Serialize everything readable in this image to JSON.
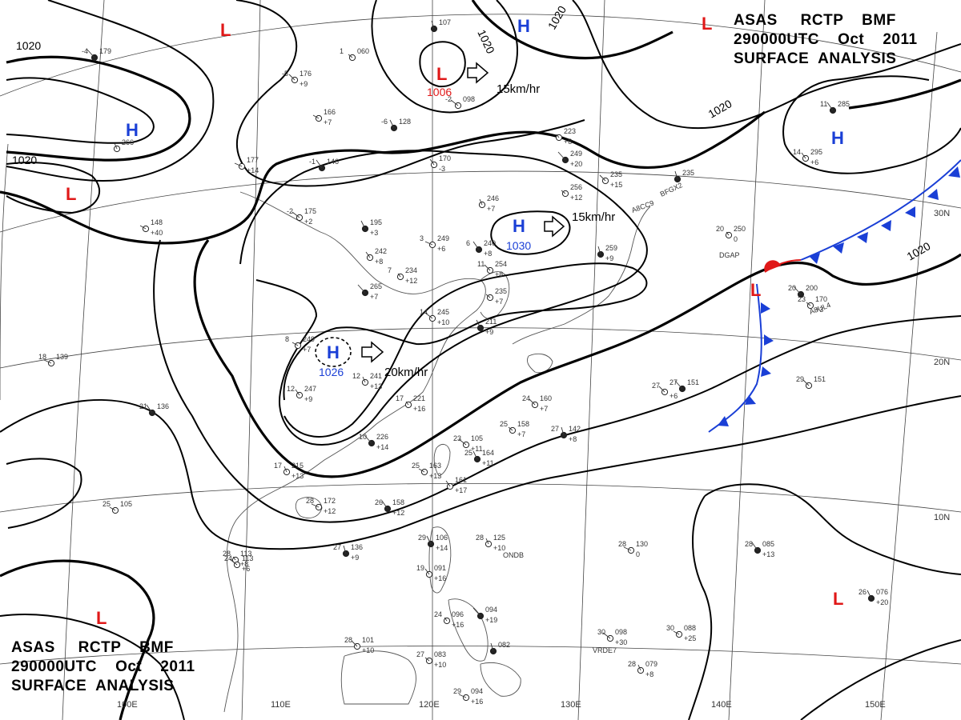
{
  "header": {
    "line1": "ASAS     RCTP    BMF",
    "line2": "290000UTC    Oct    2011",
    "line3": "SURFACE  ANALYSIS"
  },
  "footer": {
    "line1": "ASAS     RCTP    BMF",
    "line2": "290000UTC    Oct    2011",
    "line3": "SURFACE  ANALYSIS"
  },
  "longitude_labels": [
    "100E",
    "110E",
    "120E",
    "130E",
    "140E",
    "150E"
  ],
  "latitude_labels": [
    "30N",
    "20N",
    "10N"
  ],
  "isobar_label": "1020",
  "systems": [
    {
      "id": "high-west-china",
      "type": "H",
      "pressure": ""
    },
    {
      "id": "high-central-china",
      "type": "H",
      "pressure": "1026",
      "motion": "20km/hr"
    },
    {
      "id": "high-east-china-sea",
      "type": "H",
      "pressure": "1030",
      "motion": "15km/hr"
    },
    {
      "id": "high-north",
      "type": "H",
      "pressure": ""
    },
    {
      "id": "high-northeast",
      "type": "H",
      "pressure": ""
    },
    {
      "id": "low-north",
      "type": "L",
      "pressure": "1006",
      "motion": "15km/hr"
    },
    {
      "id": "low-northwest",
      "type": "L",
      "pressure": ""
    },
    {
      "id": "low-west",
      "type": "L",
      "pressure": ""
    },
    {
      "id": "low-northeast-corner",
      "type": "L",
      "pressure": ""
    },
    {
      "id": "low-front",
      "type": "L",
      "pressure": ""
    },
    {
      "id": "low-southwest",
      "type": "L",
      "pressure": ""
    },
    {
      "id": "low-southeast",
      "type": "L",
      "pressure": ""
    }
  ],
  "stations": [
    {
      "t": "-4",
      "p": "179",
      "d": ""
    },
    {
      "t": "-5",
      "p": "176",
      "d": "+9"
    },
    {
      "t": "1",
      "p": "060",
      "d": ""
    },
    {
      "t": "",
      "p": "107",
      "d": ""
    },
    {
      "t": "-2",
      "p": "098",
      "d": ""
    },
    {
      "t": "",
      "p": "166",
      "d": "+7"
    },
    {
      "t": "-6",
      "p": "128",
      "d": ""
    },
    {
      "t": "",
      "p": "266",
      "d": ""
    },
    {
      "t": "",
      "p": "177",
      "d": "+14"
    },
    {
      "t": "-1",
      "p": "146",
      "d": ""
    },
    {
      "t": "",
      "p": "170",
      "d": "-3"
    },
    {
      "t": "",
      "p": "223",
      "d": "+8"
    },
    {
      "t": "",
      "p": "249",
      "d": "+20"
    },
    {
      "t": "",
      "p": "235",
      "d": "+15"
    },
    {
      "t": "",
      "p": "256",
      "d": "+12"
    },
    {
      "t": "",
      "p": "235",
      "d": ""
    },
    {
      "t": "-2",
      "p": "175",
      "d": "+2"
    },
    {
      "t": "",
      "p": "148",
      "d": "+40"
    },
    {
      "t": "",
      "p": "195",
      "d": "+3"
    },
    {
      "t": "",
      "p": "246",
      "d": "+7"
    },
    {
      "t": "3",
      "p": "249",
      "d": "+6"
    },
    {
      "t": "6",
      "p": "240",
      "d": "+8"
    },
    {
      "t": "",
      "p": "242",
      "d": "+8"
    },
    {
      "t": "7",
      "p": "234",
      "d": "+12"
    },
    {
      "t": "",
      "p": "265",
      "d": "+7"
    },
    {
      "t": "11",
      "p": "254",
      "d": "+8"
    },
    {
      "t": "",
      "p": "235",
      "d": "+7"
    },
    {
      "t": "",
      "p": "259",
      "d": "+9"
    },
    {
      "t": "14",
      "p": "245",
      "d": "+10"
    },
    {
      "t": "8",
      "p": "249",
      "d": "+7"
    },
    {
      "t": "",
      "p": "211",
      "d": "+9"
    },
    {
      "t": "12",
      "p": "241",
      "d": "+13"
    },
    {
      "t": "18",
      "p": "139",
      "d": ""
    },
    {
      "t": "21",
      "p": "136",
      "d": ""
    },
    {
      "t": "12",
      "p": "247",
      "d": "+9"
    },
    {
      "t": "17",
      "p": "221",
      "d": "+16"
    },
    {
      "t": "10",
      "p": "226",
      "d": "+14"
    },
    {
      "t": "24",
      "p": "160",
      "d": "+7"
    },
    {
      "t": "25",
      "p": "158",
      "d": "+7"
    },
    {
      "t": "27",
      "p": "142",
      "d": "+8"
    },
    {
      "t": "23",
      "p": "105",
      "d": "+11"
    },
    {
      "t": "25",
      "p": "163",
      "d": "+13"
    },
    {
      "t": "25",
      "p": "164",
      "d": "+11"
    },
    {
      "t": "17",
      "p": "215",
      "d": "+13"
    },
    {
      "t": "28",
      "p": "172",
      "d": "+12"
    },
    {
      "t": "26",
      "p": "158",
      "d": "+12"
    },
    {
      "t": "",
      "p": "161",
      "d": "+17"
    },
    {
      "t": "28",
      "p": "113",
      "d": "+8"
    },
    {
      "t": "27",
      "p": "151",
      "d": ""
    },
    {
      "t": "29",
      "p": "151",
      "d": ""
    },
    {
      "t": "23",
      "p": "170",
      "d": "+3"
    },
    {
      "t": "27",
      "p": "136",
      "d": "+9"
    },
    {
      "t": "24",
      "p": "113",
      "d": "+6"
    },
    {
      "t": "25",
      "p": "105",
      "d": ""
    },
    {
      "t": "29",
      "p": "106",
      "d": "+14"
    },
    {
      "t": "28",
      "p": "125",
      "d": "+10"
    },
    {
      "t": "28",
      "p": "130",
      "d": "0"
    },
    {
      "t": "28",
      "p": "085",
      "d": "+13"
    },
    {
      "t": "19",
      "p": "091",
      "d": "+16"
    },
    {
      "t": "24",
      "p": "096",
      "d": "+16"
    },
    {
      "t": "",
      "p": "094",
      "d": "+19"
    },
    {
      "t": "28",
      "p": "101",
      "d": "+10"
    },
    {
      "t": "27",
      "p": "083",
      "d": "+10"
    },
    {
      "t": "",
      "p": "082",
      "d": ""
    },
    {
      "t": "30",
      "p": "098",
      "d": "+30"
    },
    {
      "t": "30",
      "p": "088",
      "d": "+25"
    },
    {
      "t": "26",
      "p": "076",
      "d": "+20"
    },
    {
      "t": "28",
      "p": "079",
      "d": "+8"
    },
    {
      "t": "29",
      "p": "094",
      "d": "+16"
    },
    {
      "t": "11",
      "p": "285",
      "d": ""
    },
    {
      "t": "14",
      "p": "295",
      "d": "+6"
    },
    {
      "t": "20",
      "p": "250",
      "d": "0"
    },
    {
      "t": "20",
      "p": "200",
      "d": ""
    },
    {
      "t": "27",
      "p": "",
      "d": "+6"
    }
  ],
  "ship_ids": [
    "BFGX2",
    "A8CC9",
    "DGAP",
    "A8UL4",
    "ONDB",
    "VRDE7"
  ],
  "colors": {
    "high": "#1a3fd6",
    "low": "#e01818",
    "isobar": "#000000",
    "grid": "#444444",
    "front_cold": "#1a3fd6",
    "front_warm": "#e01818"
  }
}
